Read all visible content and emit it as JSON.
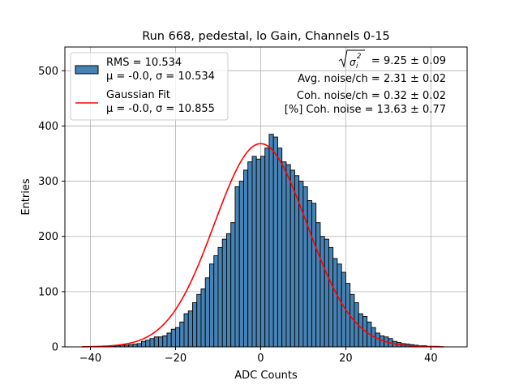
{
  "chart_data": {
    "type": "bar",
    "title": "Run 668, pedestal, lo Gain, Channels 0-15",
    "xlabel": "ADC Counts",
    "ylabel": "Entries",
    "xlim": [
      -46,
      48.5
    ],
    "ylim": [
      0,
      543
    ],
    "xticks": [
      -40,
      -20,
      0,
      20,
      40
    ],
    "xtick_labels": [
      "−40",
      "−20",
      "0",
      "20",
      "40"
    ],
    "yticks": [
      0,
      100,
      200,
      300,
      400,
      500
    ],
    "ytick_labels": [
      "0",
      "100",
      "200",
      "300",
      "400",
      "500"
    ],
    "grid": true,
    "legend_placement": "upper-left",
    "histogram": {
      "name": "RMS = 10.534",
      "stats_label": "μ = -0.0, σ = 10.534",
      "bin_width": 1,
      "bin_start": -36,
      "counts": [
        1,
        1,
        2,
        3,
        3,
        4,
        5,
        6,
        10,
        12,
        15,
        18,
        18,
        20,
        25,
        32,
        35,
        45,
        60,
        65,
        80,
        95,
        105,
        125,
        150,
        165,
        180,
        195,
        205,
        225,
        290,
        300,
        320,
        335,
        345,
        340,
        345,
        360,
        385,
        380,
        360,
        335,
        330,
        320,
        310,
        300,
        290,
        265,
        260,
        225,
        200,
        195,
        180,
        160,
        150,
        135,
        115,
        95,
        80,
        60,
        55,
        45,
        35,
        25,
        20,
        18,
        15,
        10,
        8,
        6,
        5,
        4,
        3,
        2,
        2,
        1,
        1,
        1
      ],
      "fill_color": "#4682b4",
      "edge_color": "#000000"
    },
    "gaussian_fit": {
      "name": "Gaussian Fit",
      "stats_label": "μ = -0.0, σ = 10.855",
      "mu": 0.0,
      "sigma": 10.855,
      "amplitude": 368,
      "x_range": [
        -42,
        43
      ],
      "color": "#ff0000"
    },
    "annotations": {
      "line1_value": "= 9.25 ± 0.09",
      "line2": "Avg. noise/ch = 2.31 ± 0.02",
      "line3": "Coh. noise/ch = 0.32 ± 0.02",
      "line4": "[%] Coh. noise = 13.63 ± 0.77"
    }
  }
}
